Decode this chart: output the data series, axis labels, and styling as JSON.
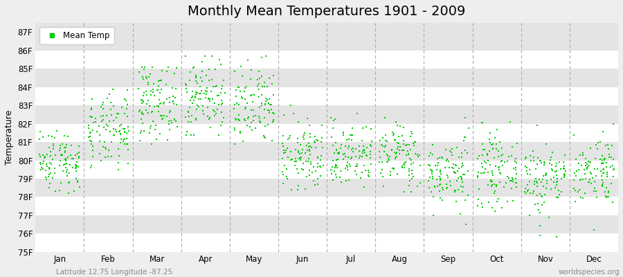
{
  "title": "Monthly Mean Temperatures 1901 - 2009",
  "ylabel": "Temperature",
  "xlabel_bottom_left": "Latitude 12.75 Longitude -87.25",
  "xlabel_bottom_right": "worldspecies.org",
  "ylim": [
    75,
    87.5
  ],
  "yticks": [
    75,
    76,
    77,
    78,
    79,
    80,
    81,
    82,
    83,
    84,
    85,
    86,
    87
  ],
  "ytick_labels": [
    "75F",
    "76F",
    "77F",
    "78F",
    "79F",
    "80F",
    "81F",
    "82F",
    "83F",
    "84F",
    "85F",
    "86F",
    "87F"
  ],
  "months": [
    "Jan",
    "Feb",
    "Mar",
    "Apr",
    "May",
    "Jun",
    "Jul",
    "Aug",
    "Sep",
    "Oct",
    "Nov",
    "Dec"
  ],
  "month_means": [
    80.0,
    81.5,
    83.2,
    83.5,
    82.8,
    80.2,
    80.3,
    80.3,
    79.3,
    79.5,
    79.0,
    79.5
  ],
  "month_stds": [
    0.85,
    1.0,
    1.0,
    1.05,
    1.15,
    0.95,
    0.88,
    0.88,
    0.95,
    0.95,
    1.05,
    0.95
  ],
  "month_mins": [
    78.2,
    77.2,
    80.4,
    81.4,
    78.7,
    78.4,
    76.7,
    76.7,
    76.2,
    76.7,
    75.1,
    76.2
  ],
  "month_maxs": [
    81.9,
    84.7,
    85.1,
    85.7,
    86.4,
    83.4,
    83.1,
    83.4,
    83.1,
    83.4,
    83.4,
    82.7
  ],
  "n_years": 109,
  "scatter_color": "#00CC00",
  "scatter_marker": "s",
  "scatter_size": 3,
  "bg_color": "#EEEEEE",
  "band_even_color": "#FFFFFF",
  "band_odd_color": "#E4E4E4",
  "dashed_line_color": "#AAAAAA",
  "title_fontsize": 14,
  "axis_label_fontsize": 9,
  "tick_fontsize": 8.5,
  "legend_fontsize": 8.5,
  "seed": 42
}
